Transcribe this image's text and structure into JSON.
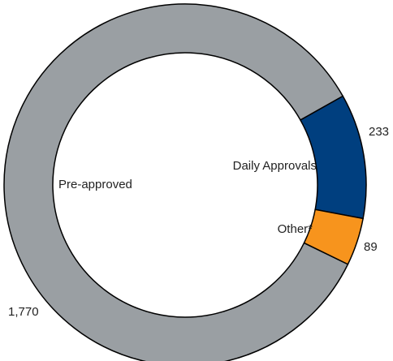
{
  "chart_data": {
    "type": "donut",
    "categories": [
      "Pre-approved",
      "Daily Approvals",
      "Other*"
    ],
    "values": [
      1770,
      233,
      89
    ],
    "value_labels": [
      "1,770",
      "233",
      "89"
    ],
    "colors": [
      "#9a9fa3",
      "#003f7f",
      "#f7941d"
    ]
  }
}
